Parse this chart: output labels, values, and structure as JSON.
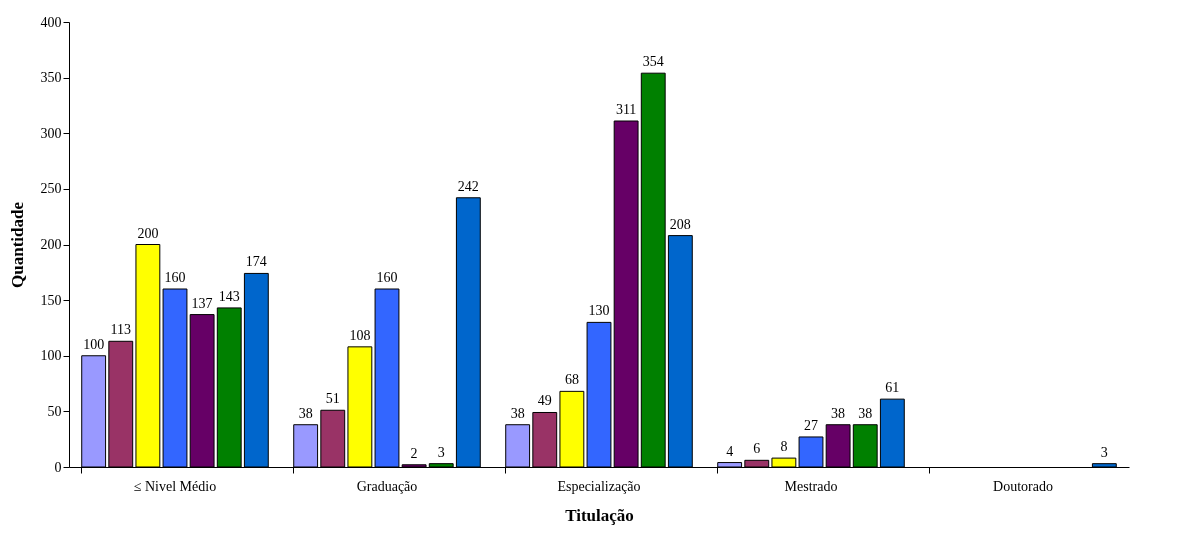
{
  "chart_data": {
    "type": "bar",
    "xlabel": "Titulação",
    "ylabel": "Quantidade",
    "categories": [
      "≤ Nivel Médio",
      "Graduação",
      "Especialização",
      "Mestrado",
      "Doutorado"
    ],
    "ylim": [
      0,
      400
    ],
    "yticks": [
      0,
      50,
      100,
      150,
      200,
      250,
      300,
      350,
      400
    ],
    "grid": false,
    "series": [
      {
        "color": "#9999ff",
        "values": [
          100,
          38,
          38,
          4,
          null
        ],
        "value_labels": [
          "100",
          "38",
          "38",
          "4",
          null
        ]
      },
      {
        "color": "#993366",
        "values": [
          113,
          51,
          49,
          6,
          null
        ],
        "value_labels": [
          "113",
          "51",
          "49",
          "6",
          null
        ]
      },
      {
        "color": "#ffff00",
        "values": [
          200,
          108,
          68,
          8,
          null
        ],
        "value_labels": [
          "200",
          "108",
          "68",
          "8",
          null
        ]
      },
      {
        "color": "#3366ff",
        "values": [
          160,
          160,
          130,
          27,
          null
        ],
        "value_labels": [
          "160",
          "160",
          "130",
          "27",
          null
        ]
      },
      {
        "color": "#660066",
        "values": [
          137,
          2,
          311,
          38,
          null
        ],
        "value_labels": [
          "137",
          "2",
          "311",
          "38",
          null
        ]
      },
      {
        "color": "#008000",
        "values": [
          143,
          3,
          354,
          38,
          null
        ],
        "value_labels": [
          "143",
          "3",
          "354",
          "38",
          null
        ]
      },
      {
        "color": "#0066cc",
        "values": [
          174,
          242,
          208,
          61,
          3
        ],
        "value_labels": [
          "174",
          "242",
          "208",
          "61",
          "3"
        ]
      }
    ]
  }
}
